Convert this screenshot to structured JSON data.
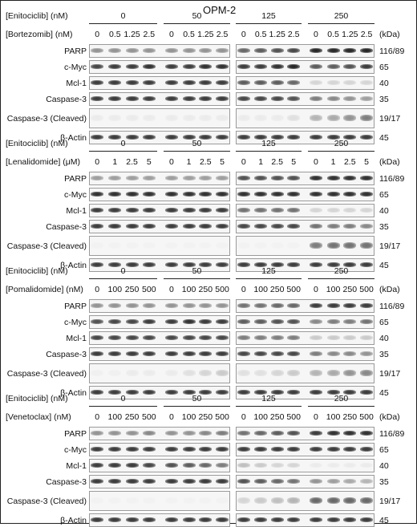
{
  "title": "OPM-2",
  "kda_label": "(kDa)",
  "panels": [
    {
      "drug_label": "[Enitociclib] (nM)",
      "drug_values": [
        "0",
        "50",
        "125",
        "250"
      ],
      "combo_label": "[Bortezomib] (nM)",
      "combo_values": [
        "0",
        "0.5",
        "1.25",
        "2.5"
      ],
      "rows": [
        {
          "name": "PARP",
          "kda": "116/89",
          "intensity": [
            0.45,
            0.45,
            0.45,
            0.45,
            0.45,
            0.45,
            0.45,
            0.45,
            0.65,
            0.7,
            0.75,
            0.8,
            0.95,
            0.95,
            0.95,
            0.95
          ]
        },
        {
          "name": "c-Myc",
          "kda": "65",
          "intensity": [
            0.8,
            0.85,
            0.85,
            0.9,
            0.85,
            0.85,
            0.9,
            0.9,
            0.85,
            0.85,
            0.9,
            0.95,
            0.7,
            0.7,
            0.75,
            0.85
          ]
        },
        {
          "name": "Mcl-1",
          "kda": "40",
          "intensity": [
            0.85,
            0.85,
            0.85,
            0.85,
            0.85,
            0.85,
            0.85,
            0.85,
            0.7,
            0.7,
            0.7,
            0.65,
            0.15,
            0.15,
            0.15,
            0.15
          ]
        },
        {
          "name": "Caspase-3",
          "kda": "35",
          "intensity": [
            0.85,
            0.85,
            0.85,
            0.85,
            0.85,
            0.85,
            0.85,
            0.85,
            0.8,
            0.8,
            0.8,
            0.75,
            0.55,
            0.5,
            0.45,
            0.4
          ]
        },
        {
          "name": "Caspase-3 (Cleaved)",
          "kda": "19/17",
          "intensity": [
            0.05,
            0.05,
            0.05,
            0.05,
            0.05,
            0.05,
            0.05,
            0.05,
            0.05,
            0.05,
            0.05,
            0.1,
            0.3,
            0.35,
            0.45,
            0.55
          ]
        },
        {
          "name": "β-Actin",
          "kda": "45",
          "intensity": [
            0.85,
            0.85,
            0.85,
            0.85,
            0.85,
            0.85,
            0.85,
            0.85,
            0.85,
            0.85,
            0.85,
            0.85,
            0.85,
            0.85,
            0.85,
            0.85
          ]
        }
      ]
    },
    {
      "drug_label": "[Enitociclib] (nM)",
      "drug_values": [
        "0",
        "50",
        "125",
        "250"
      ],
      "combo_label": "[Lenalidomide] (μM)",
      "combo_values": [
        "0",
        "1",
        "2.5",
        "5"
      ],
      "rows": [
        {
          "name": "PARP",
          "kda": "116/89",
          "intensity": [
            0.4,
            0.4,
            0.4,
            0.4,
            0.4,
            0.4,
            0.4,
            0.4,
            0.75,
            0.75,
            0.75,
            0.75,
            0.9,
            0.9,
            0.9,
            0.9
          ]
        },
        {
          "name": "c-Myc",
          "kda": "65",
          "intensity": [
            0.9,
            0.9,
            0.9,
            0.9,
            0.9,
            0.9,
            0.9,
            0.9,
            0.9,
            0.9,
            0.9,
            0.9,
            0.9,
            0.9,
            0.9,
            0.9
          ]
        },
        {
          "name": "Mcl-1",
          "kda": "40",
          "intensity": [
            0.85,
            0.85,
            0.85,
            0.85,
            0.85,
            0.85,
            0.85,
            0.85,
            0.6,
            0.6,
            0.6,
            0.6,
            0.15,
            0.15,
            0.15,
            0.15
          ]
        },
        {
          "name": "Caspase-3",
          "kda": "35",
          "intensity": [
            0.85,
            0.85,
            0.85,
            0.85,
            0.85,
            0.85,
            0.85,
            0.85,
            0.8,
            0.8,
            0.8,
            0.8,
            0.6,
            0.55,
            0.55,
            0.5
          ]
        },
        {
          "name": "Caspase-3 (Cleaved)",
          "kda": "19/17",
          "intensity": [
            0.02,
            0.02,
            0.02,
            0.02,
            0.02,
            0.02,
            0.02,
            0.02,
            0.02,
            0.02,
            0.02,
            0.02,
            0.55,
            0.6,
            0.6,
            0.6
          ]
        },
        {
          "name": "β-Actin",
          "kda": "45",
          "intensity": [
            0.85,
            0.85,
            0.85,
            0.85,
            0.85,
            0.85,
            0.85,
            0.85,
            0.85,
            0.85,
            0.85,
            0.85,
            0.85,
            0.85,
            0.85,
            0.85
          ]
        }
      ]
    },
    {
      "drug_label": "[Enitociclib] (nM)",
      "drug_values": [
        "0",
        "50",
        "125",
        "250"
      ],
      "combo_label": "[Pomalidomide] (nM)",
      "combo_values": [
        "0",
        "100",
        "250",
        "500"
      ],
      "rows": [
        {
          "name": "PARP",
          "kda": "116/89",
          "intensity": [
            0.45,
            0.45,
            0.45,
            0.45,
            0.45,
            0.45,
            0.45,
            0.45,
            0.6,
            0.6,
            0.65,
            0.65,
            0.85,
            0.85,
            0.85,
            0.85
          ]
        },
        {
          "name": "c-Myc",
          "kda": "65",
          "intensity": [
            0.75,
            0.8,
            0.8,
            0.85,
            0.85,
            0.9,
            0.85,
            0.85,
            0.7,
            0.7,
            0.75,
            0.75,
            0.5,
            0.55,
            0.55,
            0.6
          ]
        },
        {
          "name": "Mcl-1",
          "kda": "40",
          "intensity": [
            0.8,
            0.8,
            0.8,
            0.8,
            0.8,
            0.8,
            0.8,
            0.8,
            0.55,
            0.55,
            0.55,
            0.55,
            0.2,
            0.2,
            0.2,
            0.2
          ]
        },
        {
          "name": "Caspase-3",
          "kda": "35",
          "intensity": [
            0.85,
            0.85,
            0.85,
            0.85,
            0.85,
            0.85,
            0.85,
            0.85,
            0.8,
            0.8,
            0.8,
            0.8,
            0.55,
            0.5,
            0.5,
            0.45
          ]
        },
        {
          "name": "Caspase-3 (Cleaved)",
          "kda": "19/17",
          "intensity": [
            0.03,
            0.03,
            0.05,
            0.05,
            0.05,
            0.1,
            0.15,
            0.2,
            0.1,
            0.1,
            0.15,
            0.2,
            0.3,
            0.35,
            0.45,
            0.5
          ]
        },
        {
          "name": "β-Actin",
          "kda": "45",
          "intensity": [
            0.85,
            0.85,
            0.85,
            0.85,
            0.85,
            0.85,
            0.85,
            0.85,
            0.85,
            0.85,
            0.85,
            0.85,
            0.85,
            0.85,
            0.85,
            0.85
          ]
        }
      ]
    },
    {
      "drug_label": "[Enitociclib] (nM)",
      "drug_values": [
        "0",
        "50",
        "125",
        "250"
      ],
      "combo_label": "[Venetoclax] (nM)",
      "combo_values": [
        "0",
        "100",
        "250",
        "500"
      ],
      "rows": [
        {
          "name": "PARP",
          "kda": "116/89",
          "intensity": [
            0.45,
            0.45,
            0.45,
            0.5,
            0.45,
            0.45,
            0.5,
            0.55,
            0.6,
            0.65,
            0.7,
            0.75,
            0.85,
            0.9,
            0.9,
            0.9
          ]
        },
        {
          "name": "c-Myc",
          "kda": "65",
          "intensity": [
            0.85,
            0.85,
            0.85,
            0.85,
            0.85,
            0.85,
            0.85,
            0.85,
            0.85,
            0.85,
            0.85,
            0.85,
            0.85,
            0.85,
            0.85,
            0.85
          ]
        },
        {
          "name": "Mcl-1",
          "kda": "40",
          "intensity": [
            0.85,
            0.85,
            0.85,
            0.8,
            0.75,
            0.7,
            0.65,
            0.55,
            0.25,
            0.2,
            0.15,
            0.15,
            0.05,
            0.05,
            0.05,
            0.05
          ]
        },
        {
          "name": "Caspase-3",
          "kda": "35",
          "intensity": [
            0.85,
            0.85,
            0.85,
            0.85,
            0.85,
            0.85,
            0.85,
            0.85,
            0.75,
            0.7,
            0.65,
            0.6,
            0.45,
            0.4,
            0.35,
            0.3
          ]
        },
        {
          "name": "Caspase-3 (Cleaved)",
          "kda": "19/17",
          "intensity": [
            0.02,
            0.02,
            0.02,
            0.02,
            0.02,
            0.02,
            0.02,
            0.02,
            0.15,
            0.2,
            0.25,
            0.3,
            0.65,
            0.65,
            0.65,
            0.65
          ]
        },
        {
          "name": "β-Actin",
          "kda": "45",
          "intensity": [
            0.85,
            0.85,
            0.85,
            0.85,
            0.85,
            0.85,
            0.85,
            0.85,
            0.85,
            0.85,
            0.85,
            0.85,
            0.85,
            0.85,
            0.85,
            0.85
          ]
        }
      ]
    }
  ]
}
